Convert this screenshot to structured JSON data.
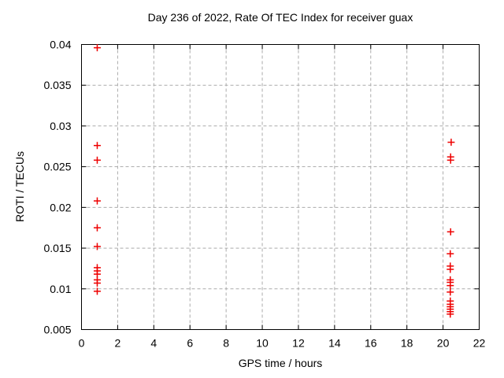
{
  "window": {
    "background_color": "#ffffff"
  },
  "chart_data": {
    "type": "scatter",
    "title": "Day 236 of 2022, Rate Of TEC Index for receiver guax",
    "xlabel": "GPS time / hours",
    "ylabel": "ROTI / TECUs",
    "xlim": [
      0,
      22
    ],
    "ylim": [
      0.005,
      0.04
    ],
    "xticks": {
      "values": [
        0,
        2,
        4,
        6,
        8,
        10,
        12,
        14,
        16,
        18,
        20,
        22
      ],
      "labels": [
        "0",
        "2",
        "4",
        "6",
        "8",
        "10",
        "12",
        "14",
        "16",
        "18",
        "20",
        "22"
      ]
    },
    "yticks": {
      "values": [
        0.005,
        0.01,
        0.015,
        0.02,
        0.025,
        0.03,
        0.035,
        0.04
      ],
      "labels": [
        "0.005",
        "0.01",
        "0.015",
        "0.02",
        "0.025",
        "0.03",
        "0.035",
        "0.04"
      ]
    },
    "grid": true,
    "grid_style": "dashed",
    "legend_position": "none",
    "marker": "plus",
    "colors": {
      "marker": "#ee0000",
      "grid": "#ababab",
      "axis": "#000000",
      "text": "#000000"
    },
    "series": [
      {
        "name": "ROTI",
        "points": [
          [
            0.87,
            0.0396
          ],
          [
            0.87,
            0.0276
          ],
          [
            0.87,
            0.0258
          ],
          [
            0.87,
            0.0208
          ],
          [
            0.87,
            0.0175
          ],
          [
            0.87,
            0.0152
          ],
          [
            0.87,
            0.0126
          ],
          [
            0.87,
            0.0122
          ],
          [
            0.87,
            0.0118
          ],
          [
            0.87,
            0.0111
          ],
          [
            0.87,
            0.0107
          ],
          [
            0.87,
            0.0097
          ],
          [
            20.45,
            0.028
          ],
          [
            20.42,
            0.0262
          ],
          [
            20.42,
            0.0258
          ],
          [
            20.42,
            0.017
          ],
          [
            20.4,
            0.0143
          ],
          [
            20.4,
            0.0128
          ],
          [
            20.4,
            0.0124
          ],
          [
            20.4,
            0.0111
          ],
          [
            20.4,
            0.0108
          ],
          [
            20.4,
            0.0104
          ],
          [
            20.4,
            0.0096
          ],
          [
            20.4,
            0.0085
          ],
          [
            20.4,
            0.0081
          ],
          [
            20.4,
            0.0078
          ],
          [
            20.4,
            0.0075
          ],
          [
            20.4,
            0.0072
          ],
          [
            20.4,
            0.0069
          ]
        ]
      }
    ]
  }
}
